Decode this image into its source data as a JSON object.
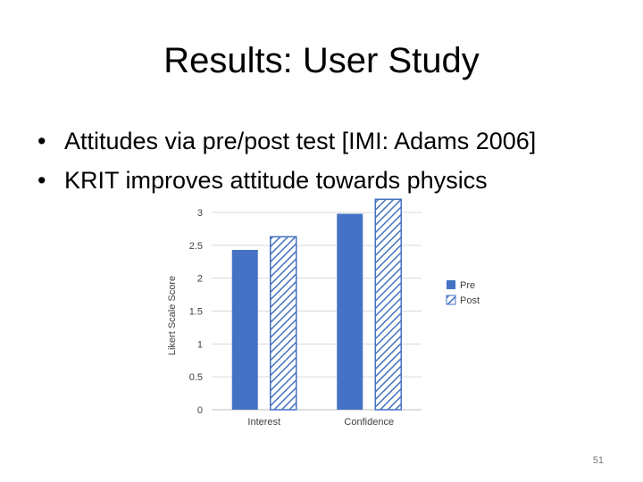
{
  "slide": {
    "title": "Results: User Study",
    "bullets": [
      "Attitudes via pre/post test [IMI: Adams 2006]",
      "KRIT improves attitude towards physics"
    ],
    "bullet_symbol": "•",
    "page_number": "51"
  },
  "chart_data": {
    "type": "bar",
    "categories": [
      "Interest",
      "Confidence"
    ],
    "series": [
      {
        "name": "Pre",
        "values": [
          2.43,
          2.98
        ],
        "color": "#4472C4",
        "pattern": "solid"
      },
      {
        "name": "Post",
        "values": [
          2.63,
          3.2
        ],
        "color": "#4472C4",
        "pattern": "diagonal-hatch"
      }
    ],
    "ylabel": "Likert Scale Score",
    "xlabel": "",
    "ylim": [
      0,
      3.2
    ],
    "yticks": [
      "0",
      "0.5",
      "1",
      "1.5",
      "2",
      "2.5",
      "3"
    ],
    "grid": true,
    "legend": "right"
  }
}
